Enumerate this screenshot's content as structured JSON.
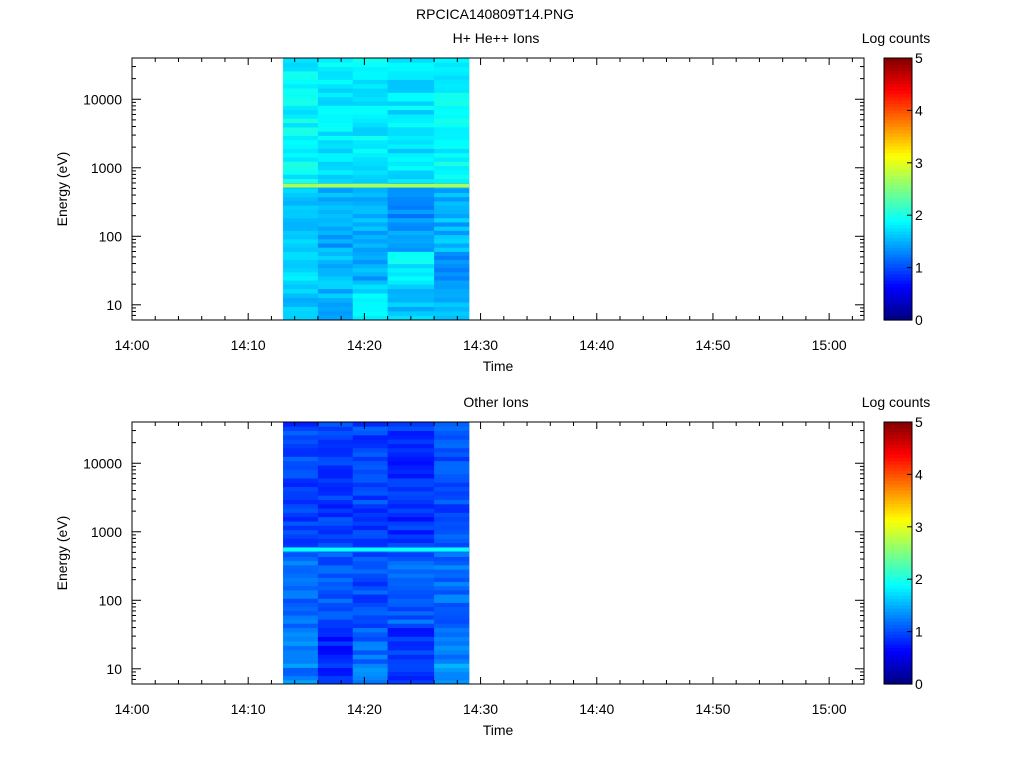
{
  "figure_title": "RPCICA140809T14.PNG",
  "chart_data": [
    {
      "type": "heatmap",
      "title": "H+ He++ Ions",
      "xlabel": "Time",
      "ylabel": "Energy (eV)",
      "y_scale": "log",
      "ylim": [
        6,
        40000
      ],
      "x_tick_labels": [
        "14:00",
        "14:10",
        "14:20",
        "14:30",
        "14:40",
        "14:50",
        "15:00"
      ],
      "y_tick_labels": [
        "10",
        "100",
        "1000",
        "10000"
      ],
      "x_range_minutes": [
        0,
        63
      ],
      "data_time_range": [
        "14:13",
        "14:29"
      ],
      "time_bins": [
        "14:13",
        "14:16",
        "14:19",
        "14:22",
        "14:26"
      ],
      "colorbar": {
        "label": "Log counts",
        "range": [
          0,
          5
        ],
        "tick_labels": [
          "0",
          "1",
          "2",
          "3",
          "4",
          "5"
        ],
        "colormap": "jet"
      },
      "line_feature_energy_eV": 550,
      "line_feature_log_counts": 2.7,
      "approx_log_counts_by_band": [
        {
          "energy_range_eV": [
            6,
            20
          ],
          "values": [
            1.6,
            1.5,
            1.75,
            1.55,
            1.5
          ]
        },
        {
          "energy_range_eV": [
            20,
            60
          ],
          "values": [
            1.7,
            1.55,
            1.45,
            1.85,
            1.4
          ]
        },
        {
          "energy_range_eV": [
            60,
            500
          ],
          "values": [
            1.6,
            1.45,
            1.5,
            1.35,
            1.5
          ]
        },
        {
          "energy_range_eV": [
            600,
            40000
          ],
          "values": [
            1.85,
            1.75,
            1.8,
            1.75,
            1.85
          ]
        }
      ]
    },
    {
      "type": "heatmap",
      "title": "Other Ions",
      "xlabel": "Time",
      "ylabel": "Energy (eV)",
      "y_scale": "log",
      "ylim": [
        6,
        40000
      ],
      "x_tick_labels": [
        "14:00",
        "14:10",
        "14:20",
        "14:30",
        "14:40",
        "14:50",
        "15:00"
      ],
      "y_tick_labels": [
        "10",
        "100",
        "1000",
        "10000"
      ],
      "x_range_minutes": [
        0,
        63
      ],
      "data_time_range": [
        "14:13",
        "14:29"
      ],
      "time_bins": [
        "14:13",
        "14:16",
        "14:19",
        "14:22",
        "14:26"
      ],
      "colorbar": {
        "label": "Log counts",
        "range": [
          0,
          5
        ],
        "tick_labels": [
          "0",
          "1",
          "2",
          "3",
          "4",
          "5"
        ],
        "colormap": "jet"
      },
      "line_feature_energy_eV": 550,
      "line_feature_log_counts": 1.9,
      "approx_log_counts_by_band": [
        {
          "energy_range_eV": [
            6,
            12
          ],
          "values": [
            1.25,
            0.85,
            1.2,
            0.85,
            1.35
          ]
        },
        {
          "energy_range_eV": [
            12,
            40
          ],
          "values": [
            1.2,
            0.8,
            1.15,
            0.85,
            1.3
          ]
        },
        {
          "energy_range_eV": [
            40,
            500
          ],
          "values": [
            1.15,
            1.05,
            1.0,
            1.1,
            1.15
          ]
        },
        {
          "energy_range_eV": [
            600,
            40000
          ],
          "values": [
            0.95,
            0.9,
            0.95,
            0.85,
            1.0
          ]
        }
      ]
    }
  ]
}
